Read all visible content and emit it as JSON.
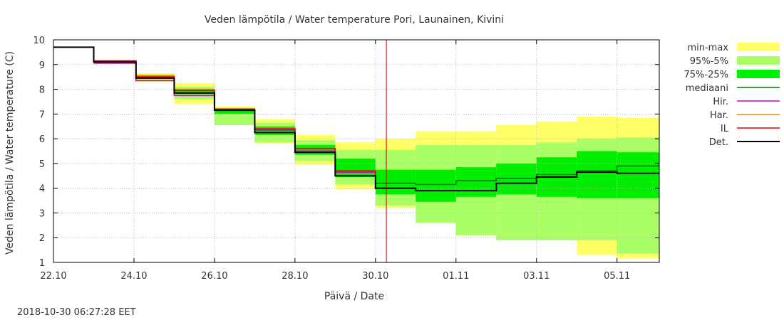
{
  "chart_data": {
    "type": "area",
    "title": "Veden lämpötila / Water temperature Pori, Launainen, Kivini",
    "xlabel": "Päivä / Date",
    "ylabel": "Veden lämpötila / Water temperature (C)",
    "timestamp": "2018-10-30 06:27:28 EET",
    "x_start": "2018-10-22",
    "xlim_days": [
      0,
      15.05
    ],
    "ylim": [
      1,
      10
    ],
    "y_ticks": [
      1,
      2,
      3,
      4,
      5,
      6,
      7,
      8,
      9,
      10
    ],
    "x_ticks": [
      {
        "day": 0,
        "label": "22.10"
      },
      {
        "day": 2,
        "label": "24.10"
      },
      {
        "day": 4,
        "label": "26.10"
      },
      {
        "day": 6,
        "label": "28.10"
      },
      {
        "day": 8,
        "label": "30.10"
      },
      {
        "day": 10,
        "label": "01.11"
      },
      {
        "day": 12,
        "label": "03.11"
      },
      {
        "day": 14,
        "label": "05.11"
      }
    ],
    "grid": true,
    "legend_position": "right",
    "now_marker_day": 8.27,
    "colors": {
      "minmax": "#ffff66",
      "p95_5": "#aaff66",
      "p75_25": "#00ee00",
      "median": "#007700",
      "hir": "#cc00cc",
      "har": "#ee8800",
      "il": "#dd0000",
      "det": "#000000",
      "now_marker": "#cc0000",
      "grid": "#bbbbbb"
    },
    "legend": [
      {
        "key": "minmax",
        "label": "min-max",
        "kind": "band"
      },
      {
        "key": "p95_5",
        "label": "95%-5%",
        "kind": "band"
      },
      {
        "key": "p75_25",
        "label": "75%-25%",
        "kind": "band"
      },
      {
        "key": "median",
        "label": "mediaani",
        "kind": "line"
      },
      {
        "key": "hir",
        "label": "Hir.",
        "kind": "line"
      },
      {
        "key": "har",
        "label": "Har.",
        "kind": "line"
      },
      {
        "key": "il",
        "label": "IL",
        "kind": "line"
      },
      {
        "key": "det",
        "label": "Det.",
        "kind": "line"
      }
    ],
    "bands": [
      {
        "x0": 2.05,
        "x1": 3.0,
        "minmax": [
          8.3,
          8.65
        ],
        "p95_5": [
          8.35,
          8.6
        ],
        "p75_25": [
          8.45,
          8.55
        ]
      },
      {
        "x0": 3.0,
        "x1": 4.0,
        "minmax": [
          7.4,
          8.25
        ],
        "p95_5": [
          7.6,
          8.1
        ],
        "p75_25": [
          7.8,
          8.0
        ]
      },
      {
        "x0": 4.0,
        "x1": 5.0,
        "minmax": [
          6.55,
          7.3
        ],
        "p95_5": [
          6.55,
          7.25
        ],
        "p75_25": [
          7.0,
          7.2
        ]
      },
      {
        "x0": 5.0,
        "x1": 6.0,
        "minmax": [
          5.8,
          6.8
        ],
        "p95_5": [
          5.85,
          6.65
        ],
        "p75_25": [
          6.15,
          6.5
        ]
      },
      {
        "x0": 6.0,
        "x1": 7.0,
        "minmax": [
          4.95,
          6.15
        ],
        "p95_5": [
          5.1,
          5.95
        ],
        "p75_25": [
          5.35,
          5.75
        ]
      },
      {
        "x0": 7.0,
        "x1": 8.0,
        "minmax": [
          3.95,
          5.85
        ],
        "p95_5": [
          4.15,
          5.55
        ],
        "p75_25": [
          4.45,
          5.2
        ]
      },
      {
        "x0": 8.0,
        "x1": 9.0,
        "minmax": [
          3.2,
          6.0
        ],
        "p95_5": [
          3.3,
          5.55
        ],
        "p75_25": [
          3.75,
          4.75
        ]
      },
      {
        "x0": 9.0,
        "x1": 10.0,
        "minmax": [
          2.6,
          6.3
        ],
        "p95_5": [
          2.6,
          5.75
        ],
        "p75_25": [
          3.45,
          4.75
        ]
      },
      {
        "x0": 10.0,
        "x1": 11.0,
        "minmax": [
          2.1,
          6.3
        ],
        "p95_5": [
          2.1,
          5.75
        ],
        "p75_25": [
          3.65,
          4.85
        ]
      },
      {
        "x0": 11.0,
        "x1": 12.0,
        "minmax": [
          1.9,
          6.55
        ],
        "p95_5": [
          1.9,
          5.75
        ],
        "p75_25": [
          3.75,
          5.0
        ]
      },
      {
        "x0": 12.0,
        "x1": 13.0,
        "minmax": [
          1.9,
          6.7
        ],
        "p95_5": [
          1.9,
          5.85
        ],
        "p75_25": [
          3.65,
          5.25
        ]
      },
      {
        "x0": 13.0,
        "x1": 14.0,
        "minmax": [
          1.3,
          6.9
        ],
        "p95_5": [
          1.9,
          6.0
        ],
        "p75_25": [
          3.6,
          5.5
        ]
      },
      {
        "x0": 14.0,
        "x1": 15.05,
        "minmax": [
          1.15,
          6.85
        ],
        "p95_5": [
          1.35,
          6.05
        ],
        "p75_25": [
          3.6,
          5.45
        ]
      }
    ],
    "series": [
      {
        "key": "det",
        "x": [
          0,
          1.0,
          1.0,
          2.05,
          2.05,
          3.0,
          3.0,
          4.0,
          4.0,
          5.0,
          5.0,
          6.0,
          6.0,
          7.0,
          7.0,
          8.0,
          8.0,
          9.0,
          9.0,
          10.0,
          10.0,
          11.0,
          11.0,
          12.0,
          12.0,
          13.0,
          13.0,
          14.0,
          14.0,
          15.05
        ],
        "y": [
          9.7,
          9.7,
          9.1,
          9.1,
          8.45,
          8.45,
          7.85,
          7.85,
          7.15,
          7.15,
          6.25,
          6.25,
          5.45,
          5.45,
          4.5,
          4.5,
          4.0,
          4.0,
          3.9,
          3.9,
          3.9,
          3.9,
          4.2,
          4.2,
          4.45,
          4.45,
          4.65,
          4.65,
          4.6,
          4.6
        ]
      },
      {
        "key": "median",
        "x": [
          8.0,
          9.0,
          9.0,
          10.0,
          10.0,
          11.0,
          11.0,
          12.0,
          12.0,
          13.0,
          13.0,
          14.0,
          14.0,
          15.05
        ],
        "y": [
          4.2,
          4.2,
          4.15,
          4.15,
          4.3,
          4.3,
          4.4,
          4.4,
          4.55,
          4.55,
          4.7,
          4.7,
          4.9,
          4.9
        ]
      },
      {
        "key": "hir",
        "x": [
          1.0,
          2.05,
          2.05,
          3.0,
          3.0,
          4.0,
          4.0,
          5.0,
          5.0,
          6.0,
          6.0,
          7.0,
          7.0,
          8.0,
          8.0,
          8.27
        ],
        "y": [
          9.05,
          9.05,
          8.35,
          8.35,
          7.75,
          7.75,
          7.15,
          7.15,
          6.35,
          6.35,
          5.5,
          5.5,
          4.65,
          4.65,
          4.0,
          4.0
        ]
      },
      {
        "key": "har",
        "x": [
          1.0,
          2.05,
          2.05,
          3.0,
          3.0,
          4.0,
          4.0,
          5.0,
          5.0,
          6.0,
          6.0,
          7.0,
          7.0,
          8.0,
          8.0,
          8.27
        ],
        "y": [
          9.15,
          9.15,
          8.55,
          8.55,
          8.0,
          8.0,
          7.2,
          7.2,
          6.45,
          6.45,
          5.6,
          5.6,
          4.7,
          4.7,
          4.0,
          4.0
        ]
      },
      {
        "key": "il",
        "x": [
          1.0,
          2.05,
          2.05,
          3.0,
          3.0,
          4.0,
          4.0,
          5.0,
          5.0,
          6.0,
          6.0,
          7.0,
          7.0,
          8.0,
          8.0,
          8.27
        ],
        "y": [
          9.15,
          9.15,
          8.5,
          8.5,
          7.95,
          7.95,
          7.2,
          7.2,
          6.4,
          6.4,
          5.6,
          5.6,
          4.7,
          4.7,
          4.0,
          4.0
        ]
      }
    ]
  }
}
